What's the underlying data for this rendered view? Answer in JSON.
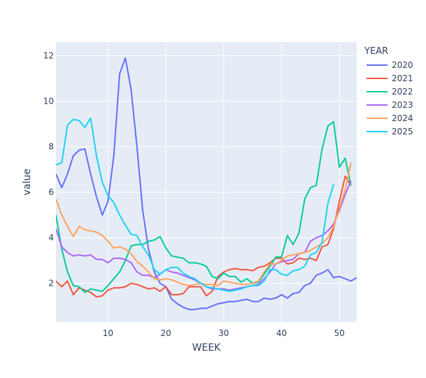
{
  "chart_data": {
    "type": "line",
    "xlabel": "WEEK",
    "ylabel": "value",
    "xlim": [
      1,
      53
    ],
    "ylim": [
      0.3,
      12.6
    ],
    "x_ticks": [
      10,
      20,
      30,
      40,
      50
    ],
    "y_ticks": [
      2,
      4,
      6,
      8,
      10,
      12
    ],
    "grid": true,
    "legend_title": "YEAR",
    "legend_position": "right",
    "series": [
      {
        "name": "2020",
        "color": "#636efa",
        "x": [
          1,
          2,
          3,
          4,
          5,
          6,
          7,
          8,
          9,
          10,
          11,
          12,
          13,
          14,
          15,
          16,
          17,
          18,
          19,
          20,
          21,
          22,
          23,
          24,
          25,
          26,
          27,
          28,
          29,
          30,
          31,
          32,
          33,
          34,
          35,
          36,
          37,
          38,
          39,
          40,
          41,
          42,
          43,
          44,
          45,
          46,
          47,
          48,
          49,
          50,
          51,
          52,
          53
        ],
        "values": [
          6.8,
          6.2,
          6.8,
          7.6,
          7.85,
          7.9,
          6.8,
          5.8,
          5.0,
          5.6,
          7.6,
          11.2,
          11.9,
          10.5,
          8.0,
          5.2,
          3.5,
          2.5,
          2.0,
          1.85,
          1.3,
          1.1,
          0.95,
          0.85,
          0.85,
          0.9,
          0.9,
          1.0,
          1.1,
          1.15,
          1.2,
          1.2,
          1.25,
          1.3,
          1.2,
          1.2,
          1.35,
          1.3,
          1.35,
          1.5,
          1.35,
          1.55,
          1.6,
          1.9,
          2.0,
          2.35,
          2.45,
          2.6,
          2.25,
          2.3,
          2.2,
          2.1,
          2.25
        ]
      },
      {
        "name": "2021",
        "color": "#ef553b",
        "x": [
          1,
          2,
          3,
          4,
          5,
          6,
          7,
          8,
          9,
          10,
          11,
          12,
          13,
          14,
          15,
          16,
          17,
          18,
          19,
          20,
          21,
          22,
          23,
          24,
          25,
          26,
          27,
          28,
          29,
          30,
          31,
          32,
          33,
          34,
          35,
          36,
          37,
          38,
          39,
          40,
          41,
          42,
          43,
          44,
          45,
          46,
          47,
          48,
          49,
          50,
          51,
          52
        ],
        "values": [
          2.1,
          1.85,
          2.1,
          1.5,
          1.8,
          1.7,
          1.6,
          1.4,
          1.45,
          1.7,
          1.8,
          1.8,
          1.85,
          2.0,
          1.95,
          1.85,
          1.75,
          1.8,
          1.65,
          1.85,
          1.5,
          1.5,
          1.55,
          1.85,
          1.85,
          1.85,
          1.45,
          1.65,
          2.3,
          2.5,
          2.6,
          2.65,
          2.6,
          2.6,
          2.55,
          2.7,
          2.75,
          2.9,
          3.1,
          3.1,
          2.85,
          2.9,
          3.1,
          3.05,
          3.1,
          3.0,
          3.6,
          3.7,
          4.4,
          5.6,
          6.7,
          6.3
        ]
      },
      {
        "name": "2022",
        "color": "#00cc96",
        "x": [
          1,
          2,
          3,
          4,
          5,
          6,
          7,
          8,
          9,
          10,
          11,
          12,
          13,
          14,
          15,
          16,
          17,
          18,
          19,
          20,
          21,
          22,
          23,
          24,
          25,
          26,
          27,
          28,
          29,
          30,
          31,
          32,
          33,
          34,
          35,
          36,
          37,
          38,
          39,
          40,
          41,
          42,
          43,
          44,
          45,
          46,
          47,
          48,
          49,
          50,
          51,
          52
        ],
        "values": [
          5.0,
          3.5,
          2.5,
          1.9,
          1.85,
          1.6,
          1.75,
          1.7,
          1.65,
          1.9,
          2.2,
          2.5,
          3.0,
          3.65,
          3.7,
          3.7,
          3.85,
          3.9,
          4.05,
          3.55,
          3.2,
          3.15,
          3.1,
          2.9,
          2.9,
          2.85,
          2.75,
          2.3,
          2.2,
          2.45,
          2.3,
          2.3,
          2.05,
          2.2,
          2.0,
          2.05,
          2.4,
          2.75,
          3.15,
          3.15,
          4.1,
          3.7,
          4.2,
          5.7,
          6.2,
          6.3,
          7.9,
          8.9,
          9.1,
          7.1,
          7.5,
          6.3
        ]
      },
      {
        "name": "2023",
        "color": "#ab63fa",
        "x": [
          1,
          2,
          3,
          4,
          5,
          6,
          7,
          8,
          9,
          10,
          11,
          12,
          13,
          14,
          15,
          16,
          17,
          18,
          19,
          20,
          21,
          22,
          23,
          24,
          25,
          26,
          27,
          28,
          29,
          30,
          31,
          32,
          33,
          34,
          35,
          36,
          37,
          38,
          39,
          40,
          41,
          42,
          43,
          44,
          45,
          46,
          47,
          48,
          49,
          50,
          51,
          52
        ],
        "values": [
          4.4,
          3.6,
          3.35,
          3.2,
          3.25,
          3.2,
          3.25,
          3.05,
          3.05,
          2.9,
          3.1,
          3.1,
          3.05,
          2.9,
          2.5,
          2.35,
          2.35,
          2.25,
          2.4,
          2.6,
          2.5,
          2.45,
          2.35,
          2.25,
          2.15,
          2.0,
          1.85,
          1.75,
          1.75,
          1.75,
          1.7,
          1.75,
          1.8,
          1.85,
          1.9,
          1.95,
          2.2,
          2.5,
          2.85,
          2.95,
          3.0,
          3.05,
          3.3,
          3.35,
          3.85,
          4.0,
          4.1,
          4.3,
          4.6,
          5.2,
          5.9,
          6.5
        ]
      },
      {
        "name": "2024",
        "color": "#ffa15a",
        "x": [
          1,
          2,
          3,
          4,
          5,
          6,
          7,
          8,
          9,
          10,
          11,
          12,
          13,
          14,
          15,
          16,
          17,
          18,
          19,
          20,
          21,
          22,
          23,
          24,
          25,
          26,
          27,
          28,
          29,
          30,
          31,
          32,
          33,
          34,
          35,
          36,
          37,
          38,
          39,
          40,
          41,
          42,
          43,
          44,
          45,
          46,
          47,
          48,
          49,
          50,
          51,
          52
        ],
        "values": [
          5.7,
          5.0,
          4.5,
          4.05,
          4.5,
          4.35,
          4.3,
          4.25,
          4.1,
          3.85,
          3.55,
          3.6,
          3.5,
          3.3,
          2.95,
          2.75,
          2.5,
          2.2,
          2.15,
          2.2,
          2.15,
          2.05,
          1.95,
          1.9,
          1.95,
          2.0,
          1.95,
          1.95,
          1.9,
          2.1,
          2.05,
          2.0,
          1.95,
          1.95,
          2.0,
          2.1,
          2.5,
          2.85,
          2.85,
          3.0,
          3.2,
          3.25,
          3.3,
          3.35,
          3.45,
          3.6,
          3.75,
          4.0,
          4.5,
          5.3,
          6.1,
          7.3
        ]
      },
      {
        "name": "2025",
        "color": "#19d3f3",
        "x": [
          1,
          2,
          3,
          4,
          5,
          6,
          7,
          8,
          9,
          10,
          11,
          12,
          13,
          14,
          15,
          16,
          17,
          18,
          19,
          20,
          21,
          22,
          23,
          24,
          25,
          26,
          27,
          28,
          29,
          30,
          31,
          32,
          33,
          34,
          35,
          36,
          37,
          38,
          39,
          40,
          41,
          42,
          43,
          44,
          45,
          46,
          47,
          48,
          49
        ],
        "values": [
          7.2,
          7.3,
          8.95,
          9.2,
          9.15,
          8.85,
          9.25,
          7.6,
          6.45,
          5.85,
          5.55,
          5.0,
          4.55,
          4.15,
          4.1,
          3.6,
          3.25,
          2.6,
          2.4,
          2.6,
          2.7,
          2.7,
          2.45,
          2.3,
          2.2,
          2.0,
          1.85,
          1.8,
          1.75,
          1.7,
          1.65,
          1.7,
          1.75,
          1.85,
          1.9,
          1.9,
          2.1,
          2.6,
          2.6,
          2.4,
          2.35,
          2.55,
          2.6,
          2.75,
          3.25,
          3.35,
          3.8,
          5.5,
          6.35
        ]
      }
    ]
  }
}
